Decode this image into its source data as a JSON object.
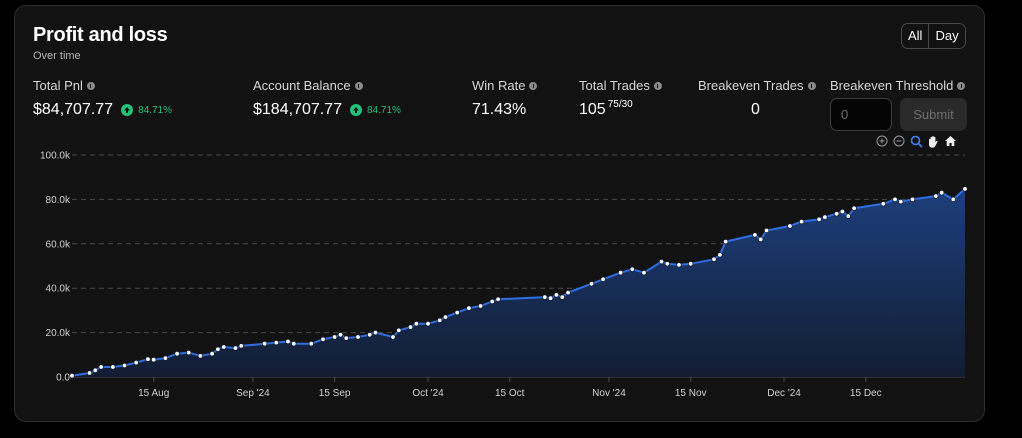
{
  "card": {
    "title": "Profit and loss",
    "subtitle": "Over time",
    "range_buttons": [
      "All",
      "Day"
    ]
  },
  "stats": {
    "total_pnl": {
      "label": "Total Pnl",
      "value": "$84,707.77",
      "change": "84.71%"
    },
    "account_balance": {
      "label": "Account Balance",
      "value": "$184,707.77",
      "change": "84.71%"
    },
    "win_rate": {
      "label": "Win Rate",
      "value": "71.43%"
    },
    "total_trades": {
      "label": "Total Trades",
      "value": "105",
      "sub": "75/30"
    },
    "breakeven_trades": {
      "label": "Breakeven Trades",
      "value": "0"
    },
    "breakeven_threshold": {
      "label": "Breakeven Threshold",
      "placeholder": "0",
      "submit_label": "Submit"
    }
  },
  "toolbar_icons": [
    "zoom-in-icon",
    "zoom-out-icon",
    "zoom-select-icon",
    "pan-hand-icon",
    "home-reset-icon"
  ],
  "colors": {
    "line": "#2f6fe4",
    "area_top": "#1d3f7c",
    "area_bottom": "#121d33",
    "positive": "#21c47a",
    "grid": "#4a4a4a",
    "card_bg": "#121212"
  },
  "chart_data": {
    "type": "area",
    "x_axis_type": "date",
    "ylim": [
      0,
      100000
    ],
    "yticks": [
      "0.0",
      "20.0k",
      "40.0k",
      "60.0k",
      "80.0k",
      "100.0k"
    ],
    "xticks": [
      {
        "label": "15 Aug",
        "date": "2024-08-15"
      },
      {
        "label": "Sep '24",
        "date": "2024-09-01"
      },
      {
        "label": "15 Sep",
        "date": "2024-09-15"
      },
      {
        "label": "Oct '24",
        "date": "2024-10-01"
      },
      {
        "label": "15 Oct",
        "date": "2024-10-15"
      },
      {
        "label": "Nov '24",
        "date": "2024-11-01"
      },
      {
        "label": "15 Nov",
        "date": "2024-11-15"
      },
      {
        "label": "Dec '24",
        "date": "2024-12-01"
      },
      {
        "label": "15 Dec",
        "date": "2024-12-15"
      }
    ],
    "grid": "horizontal-dashed",
    "series": [
      {
        "points": [
          [
            "2024-08-01",
            600
          ],
          [
            "2024-08-04",
            1800
          ],
          [
            "2024-08-05",
            3000
          ],
          [
            "2024-08-06",
            4500
          ],
          [
            "2024-08-08",
            4500
          ],
          [
            "2024-08-10",
            5200
          ],
          [
            "2024-08-12",
            6500
          ],
          [
            "2024-08-14",
            8000
          ],
          [
            "2024-08-15",
            7800
          ],
          [
            "2024-08-17",
            8500
          ],
          [
            "2024-08-19",
            10500
          ],
          [
            "2024-08-21",
            11000
          ],
          [
            "2024-08-23",
            9500
          ],
          [
            "2024-08-25",
            10500
          ],
          [
            "2024-08-26",
            12500
          ],
          [
            "2024-08-27",
            13500
          ],
          [
            "2024-08-29",
            13000
          ],
          [
            "2024-08-30",
            14000
          ],
          [
            "2024-09-03",
            15000
          ],
          [
            "2024-09-05",
            15500
          ],
          [
            "2024-09-07",
            16000
          ],
          [
            "2024-09-08",
            15000
          ],
          [
            "2024-09-11",
            15000
          ],
          [
            "2024-09-13",
            17000
          ],
          [
            "2024-09-15",
            18000
          ],
          [
            "2024-09-16",
            19000
          ],
          [
            "2024-09-17",
            17500
          ],
          [
            "2024-09-19",
            18000
          ],
          [
            "2024-09-21",
            19000
          ],
          [
            "2024-09-22",
            20000
          ],
          [
            "2024-09-25",
            18000
          ],
          [
            "2024-09-26",
            21000
          ],
          [
            "2024-09-28",
            22500
          ],
          [
            "2024-09-29",
            24000
          ],
          [
            "2024-10-01",
            24000
          ],
          [
            "2024-10-03",
            25500
          ],
          [
            "2024-10-04",
            27000
          ],
          [
            "2024-10-06",
            29000
          ],
          [
            "2024-10-08",
            31000
          ],
          [
            "2024-10-10",
            32000
          ],
          [
            "2024-10-12",
            34000
          ],
          [
            "2024-10-13",
            35000
          ],
          [
            "2024-10-21",
            36000
          ],
          [
            "2024-10-22",
            35500
          ],
          [
            "2024-10-23",
            37000
          ],
          [
            "2024-10-24",
            36000
          ],
          [
            "2024-10-25",
            38000
          ],
          [
            "2024-10-29",
            42000
          ],
          [
            "2024-10-31",
            44000
          ],
          [
            "2024-11-03",
            47000
          ],
          [
            "2024-11-05",
            48500
          ],
          [
            "2024-11-07",
            47000
          ],
          [
            "2024-11-10",
            52000
          ],
          [
            "2024-11-11",
            51000
          ],
          [
            "2024-11-13",
            50500
          ],
          [
            "2024-11-15",
            51000
          ],
          [
            "2024-11-19",
            53000
          ],
          [
            "2024-11-20",
            55000
          ],
          [
            "2024-11-21",
            61000
          ],
          [
            "2024-11-26",
            64000
          ],
          [
            "2024-11-27",
            62000
          ],
          [
            "2024-11-28",
            66000
          ],
          [
            "2024-12-02",
            68000
          ],
          [
            "2024-12-04",
            70000
          ],
          [
            "2024-12-07",
            71000
          ],
          [
            "2024-12-08",
            72000
          ],
          [
            "2024-12-10",
            73500
          ],
          [
            "2024-12-11",
            74500
          ],
          [
            "2024-12-12",
            72500
          ],
          [
            "2024-12-13",
            76000
          ],
          [
            "2024-12-18",
            78000
          ],
          [
            "2024-12-20",
            80000
          ],
          [
            "2024-12-21",
            79000
          ],
          [
            "2024-12-23",
            80000
          ],
          [
            "2024-12-27",
            81500
          ],
          [
            "2024-12-28",
            83000
          ],
          [
            "2024-12-30",
            80000
          ],
          [
            "2025-01-01",
            84707.77
          ]
        ]
      }
    ]
  }
}
